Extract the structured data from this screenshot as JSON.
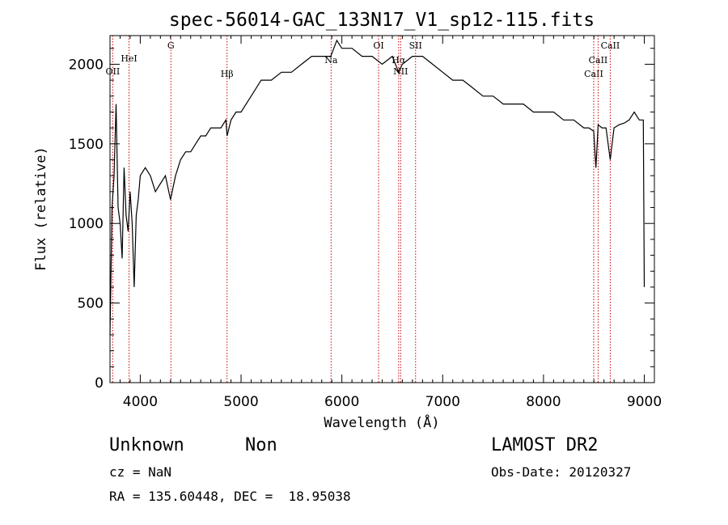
{
  "chart_data": {
    "type": "line",
    "title": "spec-56014-GAC_133N17_V1_sp12-115.fits",
    "xlabel": "Wavelength (Å)",
    "ylabel": "Flux (relative)",
    "xlim": [
      3700,
      9100
    ],
    "ylim": [
      0,
      2180
    ],
    "x_ticks": [
      4000,
      5000,
      6000,
      7000,
      8000,
      9000
    ],
    "y_ticks": [
      0,
      500,
      1000,
      1500,
      2000
    ],
    "grid": false,
    "series": [
      {
        "color": "#000000",
        "x": [
          3700,
          3720,
          3740,
          3760,
          3780,
          3800,
          3820,
          3840,
          3860,
          3880,
          3900,
          3920,
          3940,
          3960,
          3980,
          4000,
          4050,
          4100,
          4150,
          4200,
          4250,
          4300,
          4350,
          4400,
          4450,
          4500,
          4550,
          4600,
          4650,
          4700,
          4750,
          4800,
          4850,
          4861,
          4900,
          4950,
          5000,
          5100,
          5200,
          5300,
          5400,
          5500,
          5600,
          5700,
          5800,
          5890,
          5950,
          6000,
          6100,
          6200,
          6300,
          6400,
          6500,
          6563,
          6600,
          6700,
          6800,
          6900,
          7000,
          7100,
          7200,
          7300,
          7400,
          7500,
          7600,
          7700,
          7800,
          7900,
          8000,
          8100,
          8200,
          8300,
          8400,
          8450,
          8498,
          8520,
          8542,
          8580,
          8620,
          8662,
          8700,
          8750,
          8800,
          8850,
          8900,
          8950,
          8990,
          9000
        ],
        "y": [
          300,
          1100,
          1300,
          1750,
          1100,
          1000,
          780,
          1350,
          1050,
          950,
          1200,
          1000,
          600,
          1050,
          1150,
          1300,
          1350,
          1300,
          1200,
          1250,
          1300,
          1150,
          1300,
          1400,
          1450,
          1450,
          1500,
          1550,
          1550,
          1600,
          1600,
          1600,
          1650,
          1550,
          1650,
          1700,
          1700,
          1800,
          1900,
          1900,
          1950,
          1950,
          2000,
          2050,
          2050,
          2050,
          2150,
          2100,
          2100,
          2050,
          2050,
          2000,
          2050,
          1950,
          2000,
          2050,
          2050,
          2000,
          1950,
          1900,
          1900,
          1850,
          1800,
          1800,
          1750,
          1750,
          1750,
          1700,
          1700,
          1700,
          1650,
          1650,
          1600,
          1600,
          1580,
          1350,
          1620,
          1600,
          1600,
          1400,
          1600,
          1620,
          1630,
          1650,
          1700,
          1650,
          1650,
          600
        ]
      }
    ],
    "line_markers": [
      {
        "label": "OII",
        "x": 3727
      },
      {
        "label": "HeI",
        "x": 3889
      },
      {
        "label": "G",
        "x": 4304
      },
      {
        "label": "Hβ",
        "x": 4861
      },
      {
        "label": "Na",
        "x": 5893
      },
      {
        "label": "OI",
        "x": 6364
      },
      {
        "label": "Hα",
        "x": 6563
      },
      {
        "label": "NII",
        "x": 6583
      },
      {
        "label": "SII",
        "x": 6731
      },
      {
        "label": "CaII",
        "x": 8498
      },
      {
        "label": "CaII",
        "x": 8542
      },
      {
        "label": "CaII",
        "x": 8662
      }
    ]
  },
  "info": {
    "class": "Unknown",
    "subclass": "Non",
    "survey": "LAMOST DR2",
    "cz": "cz = NaN",
    "obsdate": "Obs-Date: 20120327",
    "radec": "RA = 135.60448, DEC =  18.95038"
  }
}
